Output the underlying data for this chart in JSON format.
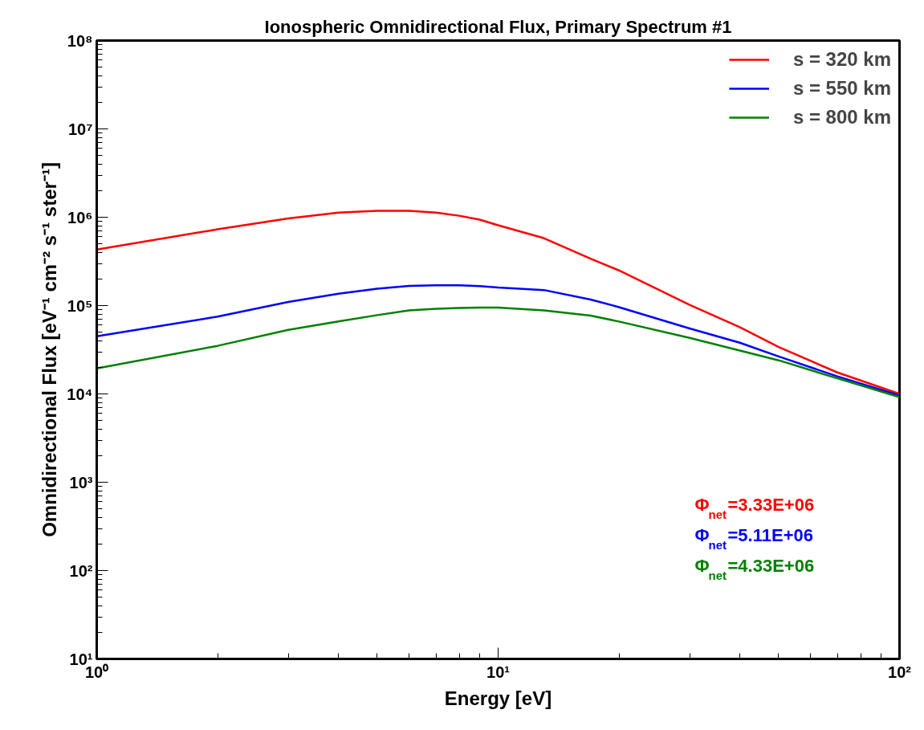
{
  "chart_data": {
    "type": "line",
    "title": "Ionospheric Omnidirectional Flux, Primary Spectrum #1",
    "xlabel": "Energy [eV]",
    "ylabel": "Omnidirectional Flux [eV⁻¹ cm⁻² s⁻¹ ster⁻¹]",
    "log": "xy",
    "grid": false,
    "legend": "top right",
    "line_style": "solid",
    "marker": "none",
    "x": [
      1,
      2,
      3,
      4,
      5,
      6,
      7,
      8,
      9,
      10,
      13,
      17,
      20,
      30,
      40,
      50,
      70,
      100
    ],
    "series": [
      {
        "name": "s = 320 km",
        "color": "#ff0000",
        "values": [
          430000,
          730000,
          970000,
          1130000,
          1180000,
          1180000,
          1130000,
          1040000,
          940000,
          810000,
          580000,
          340000,
          250000,
          102000,
          57000,
          34000,
          17500,
          10000
        ]
      },
      {
        "name": "s = 550 km",
        "color": "#0000ff",
        "values": [
          45000,
          75000,
          110000,
          136000,
          155000,
          167000,
          170000,
          170000,
          166000,
          160000,
          150000,
          117000,
          96000,
          55000,
          38000,
          26500,
          15800,
          9600
        ]
      },
      {
        "name": "s = 800 km",
        "color": "#008000",
        "values": [
          19400,
          35000,
          53000,
          66000,
          78000,
          88000,
          92000,
          94000,
          95000,
          95000,
          88000,
          77000,
          66000,
          43000,
          31000,
          24000,
          15000,
          9200
        ]
      }
    ],
    "xlim": [
      1,
      100
    ],
    "ylim": [
      10,
      100000000
    ],
    "xticks": [
      {
        "value": 1,
        "label": "10⁰"
      },
      {
        "value": 10,
        "label": "10¹"
      },
      {
        "value": 100,
        "label": "10²"
      }
    ],
    "yticks": [
      {
        "value": 10,
        "label": "10¹"
      },
      {
        "value": 100,
        "label": "10²"
      },
      {
        "value": 1000,
        "label": "10³"
      },
      {
        "value": 10000,
        "label": "10⁴"
      },
      {
        "value": 100000,
        "label": "10⁵"
      },
      {
        "value": 1000000,
        "label": "10⁶"
      },
      {
        "value": 10000000,
        "label": "10⁷"
      },
      {
        "value": 100000000,
        "label": "10⁸"
      }
    ],
    "annotations": [
      "Φ$_{net}$=3.33E+06",
      "Φ$_{net}$=5.11E+06",
      "Φ$_{net}$=4.33E+06"
    ]
  }
}
